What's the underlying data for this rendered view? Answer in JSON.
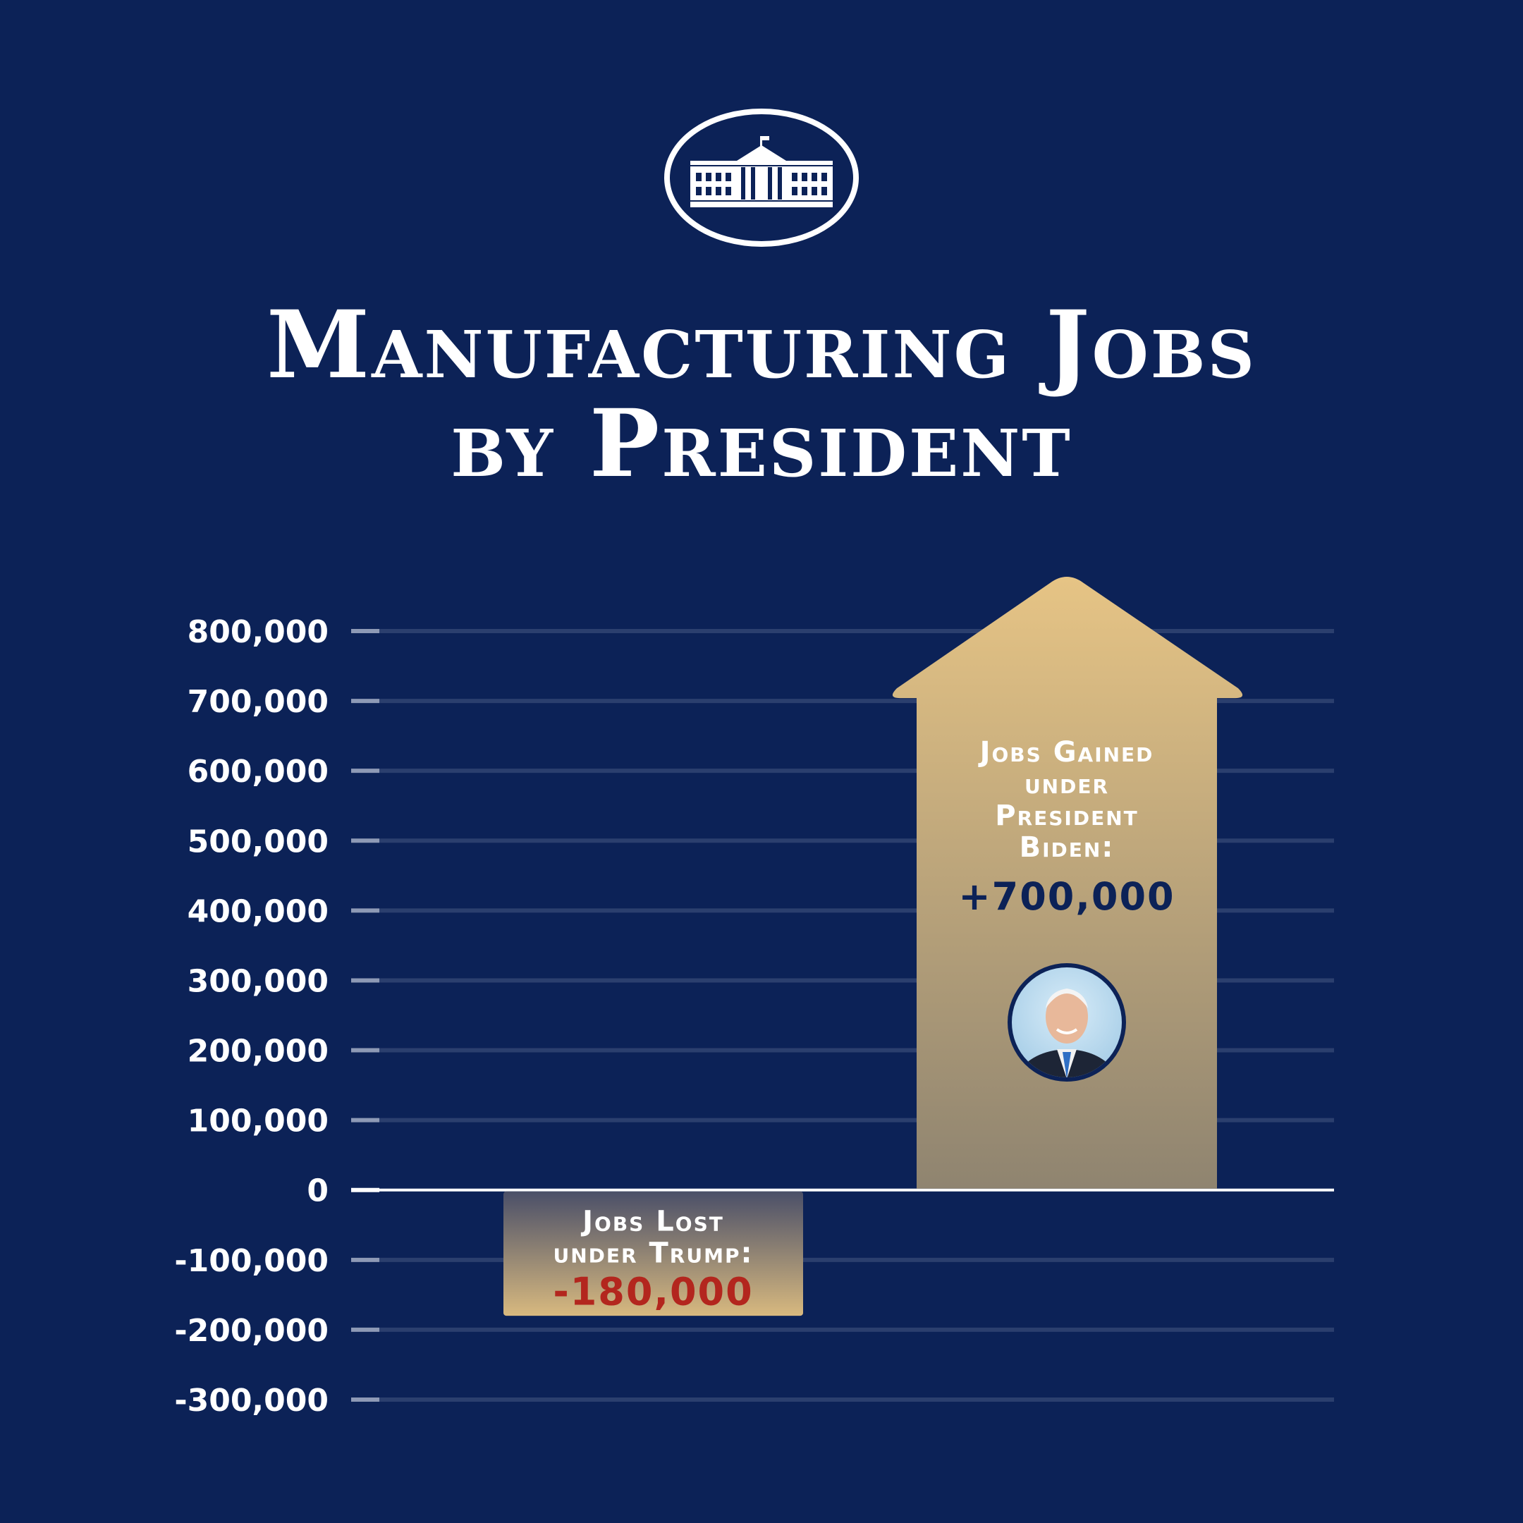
{
  "title": {
    "line1": "Manufacturing Jobs",
    "line2": "by President"
  },
  "logo": {
    "icon": "white-house-icon"
  },
  "colors": {
    "background": "#0c2257",
    "gold_top": "#e6c485",
    "gold_bottom": "#8f8470",
    "negative_value": "#b3261e",
    "grid": "#2b3f6e"
  },
  "chart_data": {
    "type": "bar",
    "title": "Manufacturing Jobs by President",
    "xlabel": "",
    "ylabel": "",
    "ylim": [
      -300000,
      800000
    ],
    "yticks": [
      800000,
      700000,
      600000,
      500000,
      400000,
      300000,
      200000,
      100000,
      0,
      -100000,
      -200000,
      -300000
    ],
    "ytick_labels": [
      "800,000",
      "700,000",
      "600,000",
      "500,000",
      "400,000",
      "300,000",
      "200,000",
      "100,000",
      "0",
      "-100,000",
      "-200,000",
      "-300,000"
    ],
    "grid": true,
    "categories": [
      "Trump",
      "Biden"
    ],
    "values": [
      -180000,
      700000
    ],
    "annotations": [
      {
        "category": "Trump",
        "label_lines": [
          "Jobs Lost",
          "under Trump:"
        ],
        "value_text": "-180,000"
      },
      {
        "category": "Biden",
        "label_lines": [
          "Jobs Gained",
          "under",
          "President",
          "Biden:"
        ],
        "value_text": "+700,000",
        "icon": "biden-portrait"
      }
    ]
  }
}
